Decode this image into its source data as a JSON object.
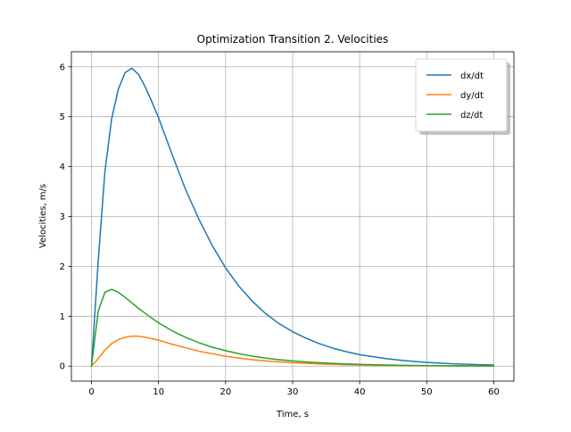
{
  "chart_data": {
    "type": "line",
    "title": "Optimization Transition 2. Velocities",
    "xlabel": "Time, s",
    "ylabel": "Velocities, m/s",
    "xlim": [
      -3,
      63
    ],
    "ylim": [
      -0.3,
      6.3
    ],
    "xticks": [
      0,
      10,
      20,
      30,
      40,
      50,
      60
    ],
    "yticks": [
      0,
      1,
      2,
      3,
      4,
      5,
      6
    ],
    "grid": true,
    "legend_position": "top-right",
    "x": [
      0,
      1,
      2,
      3,
      4,
      5,
      6,
      7,
      8,
      9,
      10,
      12,
      14,
      16,
      18,
      20,
      22,
      24,
      26,
      28,
      30,
      32,
      34,
      36,
      38,
      40,
      42,
      44,
      46,
      48,
      50,
      52,
      54,
      56,
      58,
      60
    ],
    "series": [
      {
        "name": "dx/dt",
        "color": "#1f77b4",
        "values": [
          0.0,
          2.1,
          3.9,
          4.95,
          5.55,
          5.88,
          5.97,
          5.85,
          5.6,
          5.3,
          4.98,
          4.25,
          3.55,
          2.95,
          2.42,
          1.97,
          1.6,
          1.3,
          1.05,
          0.85,
          0.69,
          0.56,
          0.45,
          0.36,
          0.29,
          0.23,
          0.19,
          0.15,
          0.12,
          0.095,
          0.075,
          0.06,
          0.047,
          0.037,
          0.029,
          0.022
        ]
      },
      {
        "name": "dy/dt",
        "color": "#ff7f0e",
        "values": [
          0.0,
          0.15,
          0.32,
          0.45,
          0.53,
          0.58,
          0.6,
          0.6,
          0.58,
          0.55,
          0.52,
          0.44,
          0.37,
          0.3,
          0.25,
          0.2,
          0.16,
          0.13,
          0.105,
          0.085,
          0.068,
          0.055,
          0.044,
          0.035,
          0.028,
          0.022,
          0.018,
          0.014,
          0.011,
          0.009,
          0.007,
          0.006,
          0.005,
          0.004,
          0.003,
          0.002
        ]
      },
      {
        "name": "dz/dt",
        "color": "#2ca02c",
        "values": [
          0.0,
          1.1,
          1.48,
          1.54,
          1.48,
          1.38,
          1.27,
          1.16,
          1.06,
          0.96,
          0.87,
          0.71,
          0.58,
          0.47,
          0.38,
          0.31,
          0.25,
          0.2,
          0.16,
          0.13,
          0.105,
          0.085,
          0.068,
          0.055,
          0.044,
          0.035,
          0.028,
          0.022,
          0.018,
          0.014,
          0.011,
          0.009,
          0.007,
          0.005,
          0.004,
          0.003
        ]
      }
    ]
  }
}
